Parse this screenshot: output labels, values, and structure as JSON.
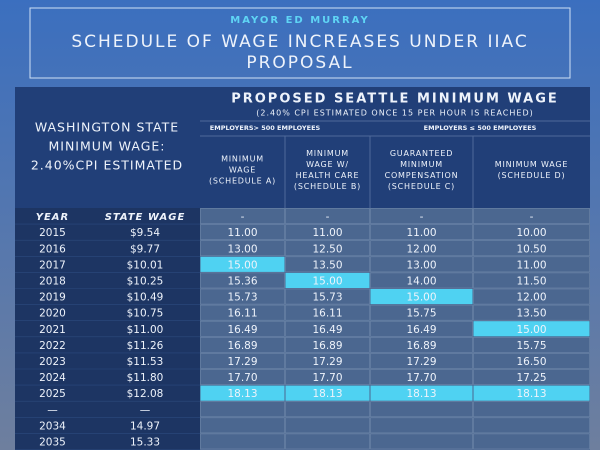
{
  "header": {
    "kicker": "MAYOR ED MURRAY",
    "title_lines": [
      "SCHEDULE OF WAGE INCREASES UNDER IIAC",
      "PROPOSAL"
    ]
  },
  "table": {
    "left_header_lines": [
      "WASHINGTON STATE",
      "MINIMUM WAGE:",
      "2.40%CPI ESTIMATED"
    ],
    "group_title": "PROPOSED SEATTLE MINIMUM WAGE",
    "group_subtitle": "(2.40% CPI ESTIMATED ONCE 15 PER HOUR IS REACHED)",
    "subgroups": [
      "EMPLOYERS> 500 EMPLOYEES",
      "EMPLOYERS ≤ 500 EMPLOYEES"
    ],
    "columns": [
      [
        "MINIMUM",
        "WAGE",
        "(SCHEDULE A)"
      ],
      [
        "MINIMUM",
        "WAGE W/",
        "HEALTH CARE",
        "(SCHEDULE B)"
      ],
      [
        "GUARANTEED",
        "MINIMUM",
        "COMPENSATION",
        "(SCHEDULE C)"
      ],
      [
        "MINIMUM WAGE",
        "(SCHEDULE D)"
      ]
    ],
    "rows": [
      [
        "YEAR",
        "STATE WAGE",
        "-",
        "-",
        "-",
        "-"
      ],
      [
        "2015",
        "$9.54",
        "11.00",
        "11.00",
        "11.00",
        "10.00"
      ],
      [
        "2016",
        "$9.77",
        "13.00",
        "12.50",
        "12.00",
        "10.50"
      ],
      [
        "2017",
        "$10.01",
        "15.00",
        "13.50",
        "13.00",
        "11.00"
      ],
      [
        "2018",
        "$10.25",
        "15.36",
        "15.00",
        "14.00",
        "11.50"
      ],
      [
        "2019",
        "$10.49",
        "15.73",
        "15.73",
        "15.00",
        "12.00"
      ],
      [
        "2020",
        "$10.75",
        "16.11",
        "16.11",
        "15.75",
        "13.50"
      ],
      [
        "2021",
        "$11.00",
        "16.49",
        "16.49",
        "16.49",
        "15.00"
      ],
      [
        "2022",
        "$11.26",
        "16.89",
        "16.89",
        "16.89",
        "15.75"
      ],
      [
        "2023",
        "$11.53",
        "17.29",
        "17.29",
        "17.29",
        "16.50"
      ],
      [
        "2024",
        "$11.80",
        "17.70",
        "17.70",
        "17.70",
        "17.25"
      ],
      [
        "2025",
        "$12.08",
        "18.13",
        "18.13",
        "18.13",
        "18.13"
      ],
      [
        "—",
        "—"
      ],
      [
        "2034",
        "14.97"
      ],
      [
        "2035",
        "15.33"
      ]
    ]
  }
}
